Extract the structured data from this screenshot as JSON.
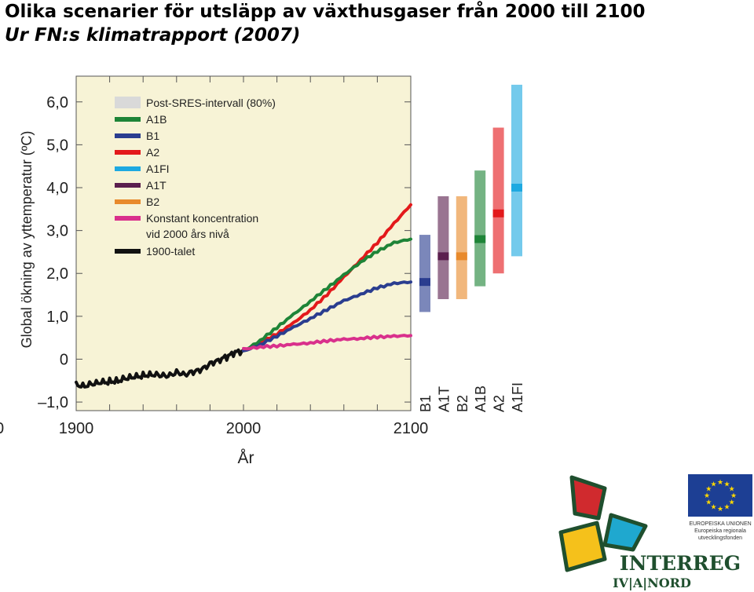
{
  "title": "Olika scenarier för utsläpp av växthusgaser från 2000 till 2100",
  "subtitle": "Ur FN:s klimatrapport (2007)",
  "colors": {
    "plot_bg": "#f7f3d6",
    "post_sres": "#d9d9d9",
    "A1B": "#1e8437",
    "B1": "#2a3d8f",
    "A2": "#e3191b",
    "A1FI": "#1ea9e1",
    "A1T": "#5b1f4e",
    "B2": "#e88a2c",
    "constant": "#d9308c",
    "1900s": "#111111"
  },
  "chart_data": {
    "type": "line",
    "xlabel": "År",
    "ylabel": "Global ökning av yttemperatur (ºC)",
    "xlim": [
      1900,
      2100
    ],
    "ylim": [
      -1.2,
      6.6
    ],
    "xticks": [
      {
        "v": 1900,
        "label": "1900"
      },
      {
        "v": 2000,
        "label": "2000"
      },
      {
        "v": 2100,
        "label": "2100"
      }
    ],
    "yticks": [
      {
        "v": 6,
        "label": "6,0"
      },
      {
        "v": 5,
        "label": "5,0"
      },
      {
        "v": 4,
        "label": "4,0"
      },
      {
        "v": 3,
        "label": "3,0"
      },
      {
        "v": 2,
        "label": "2,0"
      },
      {
        "v": 1,
        "label": "1,0"
      },
      {
        "v": 0,
        "label": "0"
      },
      {
        "v": -1,
        "label": "–1,0"
      }
    ],
    "edge_label": "0",
    "legend": [
      {
        "key": "post_sres",
        "lines": [
          "Post-SRES-intervall (80%)"
        ],
        "kind": "box"
      },
      {
        "key": "A1B",
        "lines": [
          "A1B"
        ],
        "kind": "line"
      },
      {
        "key": "B1",
        "lines": [
          "B1"
        ],
        "kind": "line"
      },
      {
        "key": "A2",
        "lines": [
          "A2"
        ],
        "kind": "line"
      },
      {
        "key": "A1FI",
        "lines": [
          "A1FI"
        ],
        "kind": "line"
      },
      {
        "key": "A1T",
        "lines": [
          "A1T"
        ],
        "kind": "line"
      },
      {
        "key": "B2",
        "lines": [
          "B2"
        ],
        "kind": "line"
      },
      {
        "key": "constant",
        "lines": [
          "Konstant koncentration",
          "vid 2000 års nivå"
        ],
        "kind": "line"
      },
      {
        "key": "1900s",
        "lines": [
          "1900-talet"
        ],
        "kind": "line"
      }
    ],
    "series": [
      {
        "name": "1900-talet",
        "key": "1900s",
        "x": [
          1900,
          1905,
          1910,
          1915,
          1920,
          1925,
          1930,
          1935,
          1940,
          1945,
          1950,
          1955,
          1960,
          1965,
          1970,
          1975,
          1980,
          1985,
          1990,
          1995,
          2000
        ],
        "y": [
          -0.6,
          -0.62,
          -0.58,
          -0.55,
          -0.52,
          -0.5,
          -0.45,
          -0.42,
          -0.38,
          -0.35,
          -0.38,
          -0.4,
          -0.3,
          -0.35,
          -0.3,
          -0.25,
          -0.1,
          -0.02,
          0.05,
          0.15,
          0.2
        ]
      },
      {
        "name": "A2",
        "key": "A2",
        "x": [
          2000,
          2010,
          2020,
          2030,
          2040,
          2050,
          2060,
          2070,
          2080,
          2090,
          2100
        ],
        "y": [
          0.2,
          0.4,
          0.6,
          0.85,
          1.15,
          1.5,
          1.9,
          2.3,
          2.7,
          3.15,
          3.6
        ]
      },
      {
        "name": "A1B",
        "key": "A1B",
        "x": [
          2000,
          2010,
          2020,
          2030,
          2040,
          2050,
          2060,
          2070,
          2080,
          2090,
          2100
        ],
        "y": [
          0.2,
          0.45,
          0.75,
          1.05,
          1.35,
          1.65,
          1.95,
          2.25,
          2.5,
          2.7,
          2.8
        ]
      },
      {
        "name": "B1",
        "key": "B1",
        "x": [
          2000,
          2010,
          2020,
          2030,
          2040,
          2050,
          2060,
          2070,
          2080,
          2090,
          2100
        ],
        "y": [
          0.2,
          0.35,
          0.55,
          0.75,
          0.95,
          1.15,
          1.35,
          1.5,
          1.65,
          1.75,
          1.8
        ]
      },
      {
        "name": "Konstant koncentration vid 2000 års nivå",
        "key": "constant",
        "x": [
          2000,
          2010,
          2020,
          2030,
          2040,
          2050,
          2060,
          2070,
          2080,
          2090,
          2100
        ],
        "y": [
          0.25,
          0.3,
          0.32,
          0.35,
          0.38,
          0.42,
          0.45,
          0.47,
          0.5,
          0.52,
          0.55
        ]
      }
    ],
    "ranges": [
      {
        "label": "B1",
        "key": "B1",
        "low": 1.1,
        "high": 2.9,
        "best": 1.8
      },
      {
        "label": "A1T",
        "key": "A1T",
        "low": 1.4,
        "high": 3.8,
        "best": 2.4
      },
      {
        "label": "B2",
        "key": "B2",
        "low": 1.4,
        "high": 3.8,
        "best": 2.4
      },
      {
        "label": "A1B",
        "key": "A1B",
        "low": 1.7,
        "high": 4.4,
        "best": 2.8
      },
      {
        "label": "A2",
        "key": "A2",
        "low": 2.0,
        "high": 5.4,
        "best": 3.4
      },
      {
        "label": "A1FI",
        "key": "A1FI",
        "low": 2.4,
        "high": 6.4,
        "best": 4.0
      }
    ]
  },
  "logos": {
    "eu_caption": [
      "EUROPEISKA UNIONEN",
      "Europeiska regionala",
      "utvecklingsfonden"
    ],
    "interreg_word": "INTERREG",
    "interreg_sub": "IV|A|NORD"
  }
}
